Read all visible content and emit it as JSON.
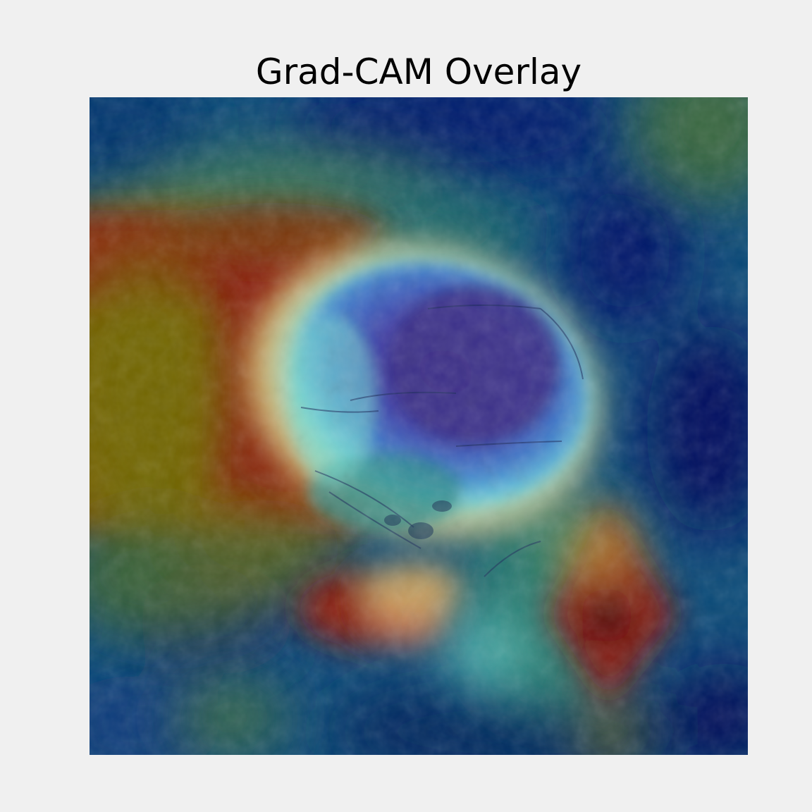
{
  "figure": {
    "title": "Grad-CAM Overlay",
    "background_color": "#f0f0f0",
    "axis_visible": false
  },
  "image": {
    "kind": "heatmap-overlay",
    "colormap": "jet",
    "subject": "skull-xray",
    "colormap_stops": [
      "#00007f",
      "#0000ff",
      "#007fff",
      "#00ffff",
      "#7fff7f",
      "#ffff00",
      "#ff7f00",
      "#ff0000",
      "#7f0000"
    ]
  }
}
